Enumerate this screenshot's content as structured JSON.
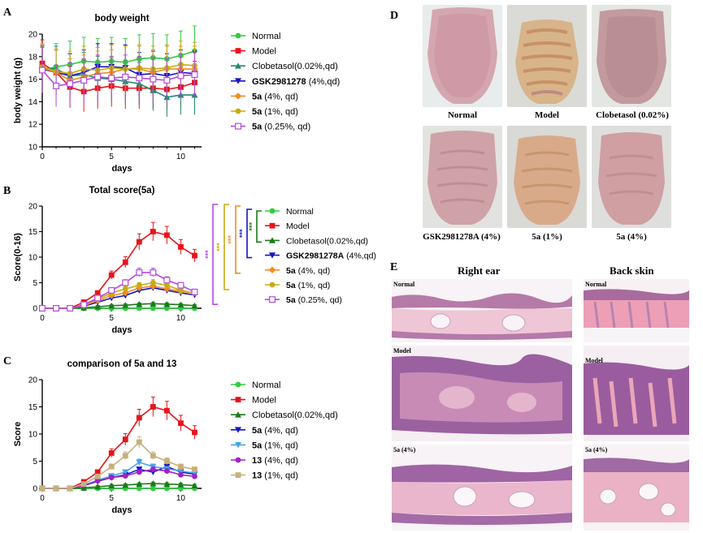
{
  "panels": {
    "a": "A",
    "b": "B",
    "c": "C",
    "d": "D",
    "e": "E"
  },
  "chart_data": [
    {
      "id": "A",
      "type": "line",
      "title": "body weight",
      "xlabel": "days",
      "ylabel": "body weight (g)",
      "xlim": [
        0,
        11.5
      ],
      "ylim": [
        10,
        20
      ],
      "xticks": [
        0,
        5,
        10
      ],
      "yticks": [
        10,
        12,
        14,
        16,
        18,
        20
      ],
      "x": [
        0,
        1,
        2,
        3,
        4,
        5,
        6,
        7,
        8,
        9,
        10,
        11
      ],
      "series": [
        {
          "name": "Normal",
          "bold": "",
          "suffix": "Normal",
          "color": "#2ecc40",
          "marker": "circle",
          "values": [
            16.8,
            17.1,
            17.3,
            17.6,
            17.5,
            17.6,
            17.5,
            17.8,
            17.9,
            17.8,
            18.1,
            18.5
          ]
        },
        {
          "name": "Model",
          "bold": "",
          "suffix": "Model",
          "color": "#e8141b",
          "marker": "square",
          "values": [
            17.4,
            16.6,
            15.3,
            14.9,
            15.2,
            15.4,
            15.2,
            15.2,
            15.2,
            15.1,
            15.3,
            15.7
          ]
        },
        {
          "name": "Clobetasol(0.02%,qd)",
          "bold": "",
          "suffix": "Clobetasol(0.02%,qd)",
          "color": "#1f8a70",
          "marker": "triangle",
          "values": [
            17.0,
            16.9,
            16.3,
            16.4,
            16.1,
            16.0,
            15.8,
            15.6,
            15.0,
            14.4,
            14.6,
            14.6
          ]
        },
        {
          "name": "GSK2981278 (4%,qd)",
          "bold": "GSK2981278",
          "suffix": " (4%,qd)",
          "color": "#1414c8",
          "marker": "tri-down",
          "values": [
            16.9,
            16.6,
            16.3,
            16.6,
            17.1,
            17.1,
            17.0,
            16.4,
            16.5,
            16.3,
            16.6,
            16.5
          ]
        },
        {
          "name": "5a (4%, qd)",
          "bold": "5a",
          "suffix": " (4%, qd)",
          "color": "#f08c1e",
          "marker": "diamond",
          "values": [
            17.0,
            16.6,
            15.9,
            16.2,
            16.5,
            16.6,
            16.9,
            16.9,
            16.6,
            16.9,
            16.9,
            16.9
          ]
        },
        {
          "name": "5a (1%, qd)",
          "bold": "5a",
          "suffix": " (1%, qd)",
          "color": "#c8aa14",
          "marker": "circle",
          "values": [
            17.1,
            16.7,
            16.5,
            16.9,
            16.8,
            17.0,
            16.9,
            17.0,
            16.9,
            17.0,
            17.3,
            17.2
          ]
        },
        {
          "name": "5a (0.25%, qd)",
          "bold": "5a",
          "suffix": " (0.25%, qd)",
          "color": "#b44ae0",
          "marker": "open-square",
          "values": [
            16.8,
            15.4,
            15.6,
            15.9,
            16.2,
            16.1,
            16.2,
            16.1,
            16.0,
            15.9,
            16.3,
            16.4
          ]
        }
      ]
    },
    {
      "id": "B",
      "type": "line",
      "title": "Total score(5a)",
      "xlabel": "days",
      "ylabel": "Score(0-16)",
      "xlim": [
        0,
        11.5
      ],
      "ylim": [
        0,
        20
      ],
      "xticks": [
        0,
        5,
        10
      ],
      "yticks": [
        0,
        5,
        10,
        15,
        20
      ],
      "x": [
        0,
        1,
        2,
        3,
        4,
        5,
        6,
        7,
        8,
        9,
        10,
        11
      ],
      "significance": [
        "***",
        "***",
        "***",
        "***",
        "***"
      ],
      "series": [
        {
          "name": "Normal",
          "bold": "",
          "suffix": "Normal",
          "color": "#2ecc40",
          "marker": "circle",
          "values": [
            0,
            0,
            0,
            0,
            0,
            0,
            0,
            0,
            0,
            0,
            0,
            0
          ]
        },
        {
          "name": "Model",
          "bold": "",
          "suffix": "Model",
          "color": "#e8141b",
          "marker": "square",
          "values": [
            0,
            0,
            0,
            1.2,
            3.0,
            6.5,
            9.0,
            13.0,
            15.0,
            14.3,
            12.0,
            10.3
          ]
        },
        {
          "name": "Clobetasol(0.02%,qd)",
          "bold": "",
          "suffix": "Clobetasol(0.02%,qd)",
          "color": "#1a7a1a",
          "marker": "triangle",
          "values": [
            0,
            0,
            0,
            0.1,
            0.3,
            0.5,
            0.6,
            0.8,
            0.9,
            0.8,
            0.7,
            0.5
          ]
        },
        {
          "name": "GSK2981278A (4%,qd)",
          "bold": "GSK2981278A",
          "suffix": " (4%,qd)",
          "color": "#1414c8",
          "marker": "tri-down",
          "values": [
            0,
            0,
            0,
            0.4,
            1.2,
            2.0,
            2.5,
            3.5,
            4.0,
            3.5,
            3.0,
            2.6
          ]
        },
        {
          "name": "5a (4%, qd)",
          "bold": "5a",
          "suffix": " (4%, qd)",
          "color": "#f08c1e",
          "marker": "diamond",
          "values": [
            0,
            0,
            0,
            0.5,
            1.5,
            2.5,
            3.0,
            4.0,
            4.3,
            3.8,
            3.3,
            3.0
          ]
        },
        {
          "name": "5a (1%, qd)",
          "bold": "5a",
          "suffix": " (1%, qd)",
          "color": "#c8aa14",
          "marker": "circle",
          "values": [
            0,
            0,
            0,
            0.6,
            1.8,
            3.0,
            3.8,
            4.5,
            5.0,
            4.5,
            3.5,
            3.0
          ]
        },
        {
          "name": "5a (0.25%, qd)",
          "bold": "5a",
          "suffix": " (0.25%, qd)",
          "color": "#b44ae0",
          "marker": "open-square",
          "values": [
            0,
            0,
            0,
            0.7,
            2.0,
            3.5,
            5.0,
            7.0,
            7.0,
            5.5,
            4.5,
            3.2
          ]
        }
      ]
    },
    {
      "id": "C",
      "type": "line",
      "title": "comparison of 5a and 13",
      "xlabel": "days",
      "ylabel": "Score",
      "xlim": [
        0,
        11.5
      ],
      "ylim": [
        0,
        20
      ],
      "xticks": [
        0,
        5,
        10
      ],
      "yticks": [
        0,
        5,
        10,
        15,
        20
      ],
      "x": [
        0,
        1,
        2,
        3,
        4,
        5,
        6,
        7,
        8,
        9,
        10,
        11
      ],
      "series": [
        {
          "name": "Normal",
          "bold": "",
          "suffix": "Normal",
          "color": "#2ecc40",
          "marker": "circle",
          "values": [
            0,
            0,
            0,
            0,
            0,
            0,
            0,
            0,
            0,
            0,
            0,
            0
          ]
        },
        {
          "name": "Model",
          "bold": "",
          "suffix": "Model",
          "color": "#e8141b",
          "marker": "square",
          "values": [
            0,
            0,
            0,
            1.2,
            3.0,
            6.5,
            9.0,
            13.0,
            15.0,
            14.3,
            12.0,
            10.3
          ]
        },
        {
          "name": "Clobetasol(0.02%,qd)",
          "bold": "",
          "suffix": "Clobetasol(0.02%,qd)",
          "color": "#1a7a1a",
          "marker": "triangle",
          "values": [
            0,
            0,
            0,
            0.1,
            0.3,
            0.5,
            0.6,
            0.8,
            0.9,
            0.8,
            0.7,
            0.5
          ]
        },
        {
          "name": "5a (4%, qd)",
          "bold": "5a",
          "suffix": " (4%, qd)",
          "color": "#1414c8",
          "marker": "tri-down",
          "values": [
            0,
            0,
            0,
            0.5,
            1.3,
            2.0,
            2.5,
            3.5,
            3.0,
            4.0,
            3.0,
            2.6
          ]
        },
        {
          "name": "5a (1%, qd)",
          "bold": "5a",
          "suffix": " (1%, qd)",
          "color": "#4aa3e8",
          "marker": "tri-down",
          "values": [
            0,
            0,
            0,
            0.6,
            1.5,
            2.3,
            3.0,
            4.8,
            4.0,
            3.6,
            3.2,
            2.8
          ]
        },
        {
          "name": "13 (4%, qd)",
          "bold": "13",
          "suffix": " (4%, qd)",
          "color": "#a020c8",
          "marker": "circle",
          "values": [
            0,
            0,
            0,
            0.5,
            1.4,
            2.0,
            2.3,
            3.0,
            3.5,
            3.2,
            2.5,
            2.2
          ]
        },
        {
          "name": "13 (1%, qd)",
          "bold": "13",
          "suffix": " (1%, qd)",
          "color": "#c8b07a",
          "marker": "square",
          "values": [
            0,
            0,
            0,
            0.8,
            2.2,
            4.0,
            6.0,
            8.5,
            6.0,
            5.0,
            4.0,
            3.5
          ]
        }
      ]
    }
  ],
  "photos": {
    "normal": "Normal",
    "model": "Model",
    "clobetasol": "Clobetasol (0.02%)",
    "gsk": "GSK2981278A (4%)",
    "fivea_1": "5a (1%)",
    "fivea_4": "5a (4%)"
  },
  "histology": {
    "right_ear_title": "Right ear",
    "back_skin_title": "Back skin",
    "normal": "Normal",
    "model": "Model",
    "fivea": "5a (4%)"
  }
}
